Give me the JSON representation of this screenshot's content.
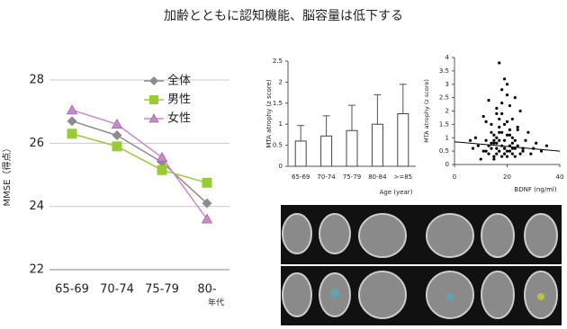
{
  "title": "加齢とともに認知機能、脳容量は低下する",
  "chart_data": [
    {
      "type": "line",
      "ylabel": "MMSE（得点）",
      "xlabel": "年代",
      "categories": [
        "65-69",
        "70-74",
        "75-79",
        "80-"
      ],
      "ylim": [
        22,
        28
      ],
      "yticks": [
        22,
        24,
        26,
        28
      ],
      "legend": "top-right",
      "series": [
        {
          "name": "全体",
          "color": "#8c8c8c",
          "marker": "diamond",
          "values": [
            26.7,
            26.25,
            25.4,
            24.1
          ]
        },
        {
          "name": "男性",
          "color": "#99cc33",
          "marker": "square",
          "values": [
            26.3,
            25.9,
            25.15,
            24.75
          ]
        },
        {
          "name": "女性",
          "color": "#cc88cc",
          "marker": "triangle",
          "values": [
            27.05,
            26.6,
            25.55,
            23.6
          ]
        }
      ]
    },
    {
      "type": "bar",
      "ylabel": "MTA atrophy (z score)",
      "xlabel": "Age (year)",
      "categories": [
        "65-69",
        "70-74",
        "75-79",
        "80-84",
        ">=85"
      ],
      "values": [
        0.6,
        0.72,
        0.85,
        1.0,
        1.25
      ],
      "errors": [
        0.37,
        0.48,
        0.6,
        0.7,
        0.7
      ],
      "color": "#ffffff",
      "ylim": [
        0,
        2.5
      ],
      "yticks": [
        0,
        0.5,
        1,
        1.5,
        2,
        2.5
      ]
    },
    {
      "type": "scatter",
      "ylabel": "MTA atrophy (z score)",
      "xlabel": "BDNF (ng/ml)",
      "xlim": [
        0,
        40
      ],
      "xticks": [
        0,
        20,
        40
      ],
      "ylim": [
        0,
        4
      ],
      "yticks": [
        0,
        0.5,
        1,
        1.5,
        2,
        2.5,
        3,
        3.5,
        4
      ],
      "color": "#000000",
      "x": [
        12,
        15,
        18,
        20,
        22,
        14,
        16,
        19,
        21,
        25,
        13,
        17,
        23,
        10,
        27,
        30,
        11,
        24,
        26,
        15,
        8,
        18,
        20,
        22,
        16,
        14,
        19,
        21,
        17,
        12,
        28,
        33,
        9,
        23,
        16,
        20,
        18,
        15,
        22,
        25,
        13,
        19,
        17,
        21,
        24,
        11,
        16,
        20,
        14,
        18,
        26,
        29,
        7,
        22,
        19,
        15,
        17,
        21,
        23,
        12,
        20,
        18,
        16,
        14,
        22,
        19,
        31,
        24,
        13,
        17,
        35,
        6,
        21,
        18,
        16,
        20,
        15,
        23,
        19,
        17
      ],
      "y": [
        0.5,
        0.8,
        1.2,
        0.3,
        0.6,
        1.5,
        2.1,
        0.9,
        1.1,
        0.4,
        0.7,
        3.8,
        2.5,
        0.2,
        0.9,
        0.6,
        1.8,
        1.3,
        0.5,
        0.3,
        1.0,
        2.8,
        1.6,
        0.8,
        0.4,
        0.6,
        3.2,
        2.2,
        1.4,
        0.9,
        1.2,
        0.5,
        0.7,
        0.3,
        1.9,
        0.5,
        0.7,
        1.1,
        1.7,
        2.0,
        0.4,
        0.6,
        0.9,
        1.3,
        0.7,
        0.5,
        1.0,
        2.6,
        0.8,
        0.3,
        0.6,
        0.4,
        0.6,
        1.0,
        1.5,
        0.2,
        0.5,
        0.7,
        0.9,
        1.6,
        3.0,
        2.3,
        0.8,
        1.2,
        0.4,
        0.6,
        0.8,
        1.4,
        2.4,
        1.7,
        0.7,
        0.9,
        0.5,
        1.9,
        0.6,
        1.1,
        0.9,
        0.6,
        0.4,
        1.2
      ],
      "trendline": {
        "x": [
          0,
          40
        ],
        "y": [
          0.85,
          0.5
        ]
      }
    }
  ]
}
